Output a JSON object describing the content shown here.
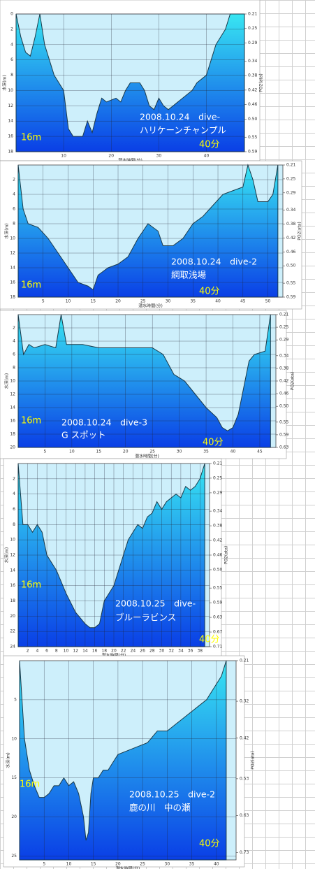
{
  "chart_data": [
    {
      "type": "area",
      "ylabel": "水深(m)",
      "y2label": "PO2(ata)",
      "xlabel": "潜水時間(分)",
      "annotations": [
        "2008.10.24　dive-",
        "ハリケーンチャンプル",
        "16m",
        "40分"
      ],
      "x": [
        0,
        1,
        2,
        3,
        4,
        5,
        6,
        8,
        10,
        11,
        12,
        14,
        15,
        16,
        17,
        18,
        19,
        21,
        22,
        23,
        24,
        26,
        27,
        28,
        29,
        30,
        31,
        32,
        33,
        35,
        37,
        38,
        40,
        41,
        42,
        44,
        45,
        46,
        48
      ],
      "values": [
        0,
        3,
        5,
        5.5,
        3,
        0,
        4,
        8,
        10,
        15,
        16,
        16,
        14,
        15.5,
        13,
        11,
        11.5,
        11,
        11.5,
        10,
        9,
        9,
        10,
        12,
        12.5,
        11,
        12,
        12.5,
        12,
        11,
        10,
        9,
        8,
        6,
        4,
        2,
        0,
        0,
        0
      ],
      "xlim": [
        0,
        48
      ],
      "xticks": [
        10,
        20,
        30,
        40
      ],
      "ylim": [
        0,
        18
      ],
      "yticks": [
        0,
        2,
        4,
        6,
        8,
        10,
        12,
        14,
        16,
        18
      ],
      "y2lim": [
        0.21,
        0.59
      ],
      "y2ticks": [
        0.21,
        0.25,
        0.29,
        0.34,
        0.38,
        0.42,
        0.46,
        {
          "value": 0.5,
          "label": "0.50"
        },
        0.55,
        0.59
      ]
    },
    {
      "type": "area",
      "ylabel": "水深(m)",
      "y2label": "PO2(ata)",
      "xlabel": "潜水時間(分)",
      "annotations": [
        "2008.10.24　dive-2",
        "網取浅場",
        "16m",
        "40分"
      ],
      "x": [
        0,
        1,
        2,
        4,
        6,
        8,
        10,
        12,
        14,
        15,
        16,
        18,
        20,
        22,
        24,
        25,
        26,
        28,
        29,
        31,
        33,
        34,
        35,
        37,
        39,
        41,
        43,
        45,
        46,
        47,
        48,
        50,
        51,
        52
      ],
      "values": [
        0,
        6,
        8,
        8.5,
        10,
        12,
        14,
        16,
        16.5,
        17,
        15,
        14,
        13.5,
        12.5,
        10,
        9,
        8,
        9,
        11,
        11,
        10,
        9,
        8,
        7,
        5.5,
        4,
        3.5,
        3,
        0,
        2,
        5,
        5,
        4,
        0
      ],
      "xlim": [
        0,
        53
      ],
      "xticks": [
        5,
        10,
        15,
        20,
        25,
        30,
        35,
        40,
        45,
        50
      ],
      "ylim": [
        0,
        18
      ],
      "yticks": [
        2,
        4,
        6,
        8,
        10,
        12,
        14,
        16,
        18
      ],
      "y2lim": [
        0.21,
        0.59
      ],
      "y2ticks": [
        0.21,
        0.25,
        0.29,
        0.34,
        0.38,
        0.42,
        0.46,
        {
          "value": 0.5,
          "label": "0.50"
        },
        0.55,
        0.59
      ]
    },
    {
      "type": "area",
      "ylabel": "水深(m)",
      "y2label": "PO2(ata)",
      "xlabel": "潜水時間(分)",
      "annotations": [
        "2008.10.24　dive-3",
        "G スポット",
        "16m",
        "40分"
      ],
      "x": [
        0,
        1,
        2,
        3,
        5,
        7,
        8,
        9,
        12,
        15,
        20,
        23,
        25,
        27,
        29,
        31,
        33,
        35,
        37,
        38,
        39,
        40,
        41,
        42,
        43,
        44,
        46,
        47
      ],
      "values": [
        0,
        6,
        4.5,
        5,
        4.5,
        5,
        0,
        4.5,
        4.5,
        5,
        5,
        5,
        5,
        6,
        9,
        10,
        12,
        14,
        15.5,
        17,
        17.5,
        17,
        15,
        11,
        7,
        6,
        5.5,
        0
      ],
      "xlim": [
        0,
        48
      ],
      "xticks": [
        5,
        10,
        15,
        20,
        25,
        30,
        35,
        40,
        45
      ],
      "ylim": [
        0,
        20
      ],
      "yticks": [
        2,
        4,
        6,
        8,
        10,
        12,
        14,
        16,
        18,
        20
      ],
      "y2lim": [
        0.21,
        0.63
      ],
      "y2ticks": [
        0.21,
        0.25,
        0.29,
        0.34,
        0.38,
        0.42,
        0.46,
        {
          "value": 0.5,
          "label": "0.50"
        },
        0.55,
        0.59,
        0.63
      ]
    },
    {
      "type": "area",
      "ylabel": "水深(m)",
      "y2label": "PO2(ata)",
      "xlabel": "潜水時間(分)",
      "annotations": [
        "2008.10.25　dive-",
        "ブルーラビンス",
        "16m",
        "40分"
      ],
      "x": [
        0,
        1,
        2,
        3,
        4,
        5,
        6,
        8,
        10,
        12,
        14,
        15,
        16,
        17,
        18,
        19,
        20,
        21,
        22,
        23,
        24,
        25,
        26,
        27,
        28,
        29,
        30,
        31,
        32,
        33,
        34,
        35,
        36,
        37,
        38,
        39
      ],
      "values": [
        0,
        8,
        8,
        9,
        8,
        9,
        12,
        14,
        17,
        19.5,
        21,
        21.5,
        21.5,
        21,
        18,
        17,
        16,
        14,
        12,
        10,
        9,
        8,
        8.5,
        7,
        6.5,
        5,
        6,
        5,
        4.5,
        4,
        4.5,
        3,
        3.5,
        3,
        2,
        0
      ],
      "xlim": [
        0,
        40
      ],
      "xticks": [
        2,
        4,
        6,
        8,
        10,
        12,
        14,
        16,
        18,
        20,
        22,
        24,
        26,
        28,
        30,
        32,
        34,
        36,
        38
      ],
      "ylim": [
        0,
        24
      ],
      "yticks": [
        2,
        4,
        6,
        8,
        10,
        12,
        14,
        16,
        18,
        20,
        22,
        24
      ],
      "y2lim": [
        0.21,
        0.71
      ],
      "y2ticks": [
        0.21,
        0.25,
        0.29,
        0.34,
        0.38,
        0.42,
        0.46,
        {
          "value": 0.5,
          "label": "0.50"
        },
        0.55,
        0.59,
        0.63,
        0.67,
        0.71
      ]
    },
    {
      "type": "area",
      "ylabel": "水深(m)",
      "y2label": "PO2(ata)",
      "xlabel": "潜水時間(分)",
      "annotations": [
        "2008.10.25　dive-2",
        "鹿の川　中の瀬",
        "16m",
        "40分"
      ],
      "x": [
        0,
        1,
        2,
        3,
        4,
        5,
        6,
        7,
        8,
        9,
        10,
        11,
        12,
        13,
        13.5,
        14,
        14.5,
        15,
        16,
        17,
        18,
        19,
        20,
        22,
        24,
        26,
        28,
        30,
        32,
        34,
        36,
        38,
        40,
        41,
        42
      ],
      "values": [
        0,
        10,
        14,
        16,
        17.5,
        17.5,
        17,
        16,
        16,
        15,
        16,
        15.5,
        17,
        20,
        23,
        22,
        17,
        15,
        15,
        14,
        14,
        13,
        12,
        11.5,
        11,
        10.5,
        9,
        9,
        8,
        7,
        6,
        5,
        3,
        2,
        0
      ],
      "xlim": [
        0,
        44
      ],
      "xticks": [
        5,
        10,
        15,
        20,
        25,
        30,
        35,
        40
      ],
      "ylim": [
        0,
        25.5
      ],
      "yticks": [
        5,
        10,
        15,
        20,
        25
      ],
      "y2lim": [
        0.21,
        0.75
      ],
      "y2ticks": [
        0.21,
        0.32,
        0.42,
        0.53,
        0.63,
        {
          "value": 0.73,
          "label": "0.73"
        }
      ]
    }
  ]
}
